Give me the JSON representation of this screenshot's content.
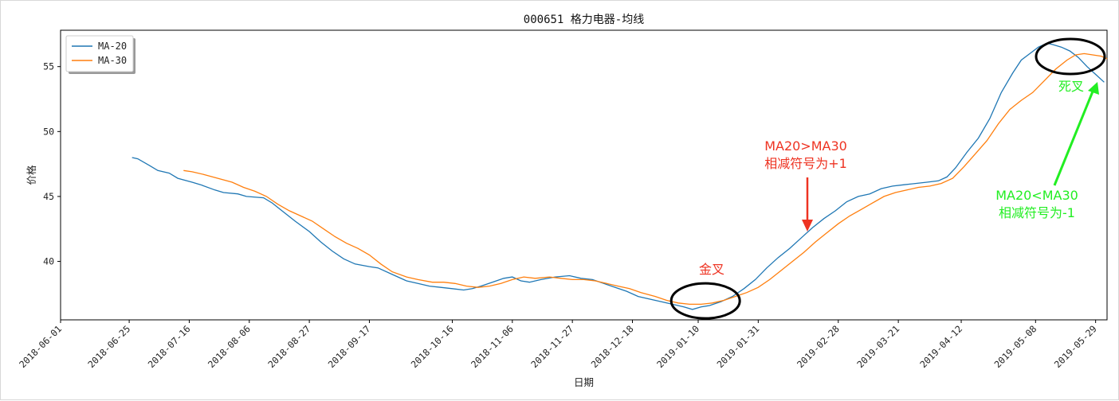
{
  "chart_data": {
    "type": "line",
    "title": "000651 格力电器-均线",
    "xlabel": "日期",
    "ylabel": "价格",
    "xlim": [
      "2018-06-01",
      "2019-06-02"
    ],
    "ylim": [
      35.5,
      57.8
    ],
    "x_tick_labels": [
      "2018-06-01",
      "2018-06-25",
      "2018-07-16",
      "2018-08-06",
      "2018-08-27",
      "2018-09-17",
      "2018-10-16",
      "2018-11-06",
      "2018-11-27",
      "2018-12-18",
      "2019-01-10",
      "2019-01-31",
      "2019-02-28",
      "2019-03-21",
      "2019-04-12",
      "2019-05-08",
      "2019-05-29"
    ],
    "y_ticks": [
      40,
      45,
      50,
      55
    ],
    "grid": false,
    "legend_position": "upper-left",
    "series": [
      {
        "name": "MA-20",
        "color": "#1f77b4",
        "points": [
          [
            "2018-06-26",
            48.0
          ],
          [
            "2018-06-28",
            47.9
          ],
          [
            "2018-07-02",
            47.4
          ],
          [
            "2018-07-05",
            47.0
          ],
          [
            "2018-07-09",
            46.8
          ],
          [
            "2018-07-12",
            46.4
          ],
          [
            "2018-07-17",
            46.1
          ],
          [
            "2018-07-20",
            45.9
          ],
          [
            "2018-07-25",
            45.5
          ],
          [
            "2018-07-28",
            45.3
          ],
          [
            "2018-08-02",
            45.2
          ],
          [
            "2018-08-05",
            45.0
          ],
          [
            "2018-08-11",
            44.9
          ],
          [
            "2018-08-14",
            44.5
          ],
          [
            "2018-08-18",
            43.8
          ],
          [
            "2018-08-22",
            43.1
          ],
          [
            "2018-08-27",
            42.3
          ],
          [
            "2018-08-31",
            41.5
          ],
          [
            "2018-09-04",
            40.8
          ],
          [
            "2018-09-08",
            40.2
          ],
          [
            "2018-09-12",
            39.8
          ],
          [
            "2018-09-17",
            39.6
          ],
          [
            "2018-09-20",
            39.5
          ],
          [
            "2018-09-25",
            39.0
          ],
          [
            "2018-09-30",
            38.5
          ],
          [
            "2018-10-04",
            38.3
          ],
          [
            "2018-10-08",
            38.1
          ],
          [
            "2018-10-12",
            38.0
          ],
          [
            "2018-10-16",
            37.9
          ],
          [
            "2018-10-20",
            37.8
          ],
          [
            "2018-10-23",
            37.9
          ],
          [
            "2018-10-26",
            38.1
          ],
          [
            "2018-10-30",
            38.4
          ],
          [
            "2018-11-03",
            38.7
          ],
          [
            "2018-11-06",
            38.8
          ],
          [
            "2018-11-09",
            38.5
          ],
          [
            "2018-11-12",
            38.4
          ],
          [
            "2018-11-16",
            38.6
          ],
          [
            "2018-11-21",
            38.8
          ],
          [
            "2018-11-26",
            38.9
          ],
          [
            "2018-11-30",
            38.7
          ],
          [
            "2018-12-04",
            38.6
          ],
          [
            "2018-12-08",
            38.3
          ],
          [
            "2018-12-12",
            38.0
          ],
          [
            "2018-12-16",
            37.7
          ],
          [
            "2018-12-20",
            37.3
          ],
          [
            "2018-12-24",
            37.1
          ],
          [
            "2018-12-28",
            36.9
          ],
          [
            "2019-01-01",
            36.7
          ],
          [
            "2019-01-05",
            36.5
          ],
          [
            "2019-01-08",
            36.3
          ],
          [
            "2019-01-11",
            36.5
          ],
          [
            "2019-01-14",
            36.6
          ],
          [
            "2019-01-18",
            36.9
          ],
          [
            "2019-01-22",
            37.3
          ],
          [
            "2019-01-26",
            37.9
          ],
          [
            "2019-01-30",
            38.6
          ],
          [
            "2019-02-03",
            39.5
          ],
          [
            "2019-02-07",
            40.3
          ],
          [
            "2019-02-11",
            41.0
          ],
          [
            "2019-02-15",
            41.8
          ],
          [
            "2019-02-19",
            42.6
          ],
          [
            "2019-02-23",
            43.3
          ],
          [
            "2019-02-27",
            43.9
          ],
          [
            "2019-03-03",
            44.6
          ],
          [
            "2019-03-07",
            45.0
          ],
          [
            "2019-03-11",
            45.2
          ],
          [
            "2019-03-15",
            45.6
          ],
          [
            "2019-03-19",
            45.8
          ],
          [
            "2019-03-23",
            45.9
          ],
          [
            "2019-03-27",
            46.0
          ],
          [
            "2019-03-31",
            46.1
          ],
          [
            "2019-04-04",
            46.2
          ],
          [
            "2019-04-07",
            46.5
          ],
          [
            "2019-04-10",
            47.2
          ],
          [
            "2019-04-14",
            48.4
          ],
          [
            "2019-04-18",
            49.5
          ],
          [
            "2019-04-22",
            51.0
          ],
          [
            "2019-04-26",
            53.0
          ],
          [
            "2019-04-30",
            54.5
          ],
          [
            "2019-05-03",
            55.5
          ],
          [
            "2019-05-06",
            56.0
          ],
          [
            "2019-05-09",
            56.5
          ],
          [
            "2019-05-12",
            56.8
          ],
          [
            "2019-05-14",
            56.7
          ],
          [
            "2019-05-17",
            56.5
          ],
          [
            "2019-05-20",
            56.2
          ],
          [
            "2019-05-23",
            55.7
          ],
          [
            "2019-05-26",
            55.0
          ],
          [
            "2019-05-29",
            54.4
          ],
          [
            "2019-06-01",
            53.8
          ]
        ]
      },
      {
        "name": "MA-30",
        "color": "#ff7f0e",
        "points": [
          [
            "2018-07-14",
            47.0
          ],
          [
            "2018-07-17",
            46.9
          ],
          [
            "2018-07-21",
            46.7
          ],
          [
            "2018-07-26",
            46.4
          ],
          [
            "2018-07-31",
            46.1
          ],
          [
            "2018-08-04",
            45.7
          ],
          [
            "2018-08-08",
            45.4
          ],
          [
            "2018-08-12",
            45.0
          ],
          [
            "2018-08-16",
            44.4
          ],
          [
            "2018-08-20",
            43.9
          ],
          [
            "2018-08-24",
            43.5
          ],
          [
            "2018-08-28",
            43.1
          ],
          [
            "2018-09-01",
            42.5
          ],
          [
            "2018-09-05",
            41.9
          ],
          [
            "2018-09-09",
            41.4
          ],
          [
            "2018-09-13",
            41.0
          ],
          [
            "2018-09-17",
            40.5
          ],
          [
            "2018-09-21",
            39.8
          ],
          [
            "2018-09-25",
            39.2
          ],
          [
            "2018-09-30",
            38.8
          ],
          [
            "2018-10-04",
            38.6
          ],
          [
            "2018-10-09",
            38.4
          ],
          [
            "2018-10-13",
            38.4
          ],
          [
            "2018-10-17",
            38.3
          ],
          [
            "2018-10-21",
            38.1
          ],
          [
            "2018-10-25",
            38.0
          ],
          [
            "2018-10-29",
            38.1
          ],
          [
            "2018-11-02",
            38.3
          ],
          [
            "2018-11-06",
            38.6
          ],
          [
            "2018-11-10",
            38.8
          ],
          [
            "2018-11-14",
            38.7
          ],
          [
            "2018-11-19",
            38.8
          ],
          [
            "2018-11-23",
            38.7
          ],
          [
            "2018-11-27",
            38.6
          ],
          [
            "2018-12-01",
            38.6
          ],
          [
            "2018-12-05",
            38.5
          ],
          [
            "2018-12-09",
            38.3
          ],
          [
            "2018-12-13",
            38.1
          ],
          [
            "2018-12-17",
            37.9
          ],
          [
            "2018-12-21",
            37.6
          ],
          [
            "2018-12-26",
            37.3
          ],
          [
            "2018-12-30",
            37.0
          ],
          [
            "2019-01-03",
            36.8
          ],
          [
            "2019-01-07",
            36.7
          ],
          [
            "2019-01-11",
            36.7
          ],
          [
            "2019-01-15",
            36.8
          ],
          [
            "2019-01-19",
            37.0
          ],
          [
            "2019-01-23",
            37.3
          ],
          [
            "2019-01-27",
            37.6
          ],
          [
            "2019-01-31",
            38.0
          ],
          [
            "2019-02-04",
            38.6
          ],
          [
            "2019-02-08",
            39.3
          ],
          [
            "2019-02-12",
            40.0
          ],
          [
            "2019-02-16",
            40.7
          ],
          [
            "2019-02-20",
            41.5
          ],
          [
            "2019-02-24",
            42.2
          ],
          [
            "2019-02-28",
            42.9
          ],
          [
            "2019-03-04",
            43.5
          ],
          [
            "2019-03-08",
            44.0
          ],
          [
            "2019-03-12",
            44.5
          ],
          [
            "2019-03-16",
            45.0
          ],
          [
            "2019-03-20",
            45.3
          ],
          [
            "2019-03-24",
            45.5
          ],
          [
            "2019-03-28",
            45.7
          ],
          [
            "2019-04-01",
            45.8
          ],
          [
            "2019-04-05",
            46.0
          ],
          [
            "2019-04-09",
            46.4
          ],
          [
            "2019-04-13",
            47.3
          ],
          [
            "2019-04-17",
            48.3
          ],
          [
            "2019-04-21",
            49.3
          ],
          [
            "2019-04-25",
            50.6
          ],
          [
            "2019-04-29",
            51.7
          ],
          [
            "2019-05-03",
            52.4
          ],
          [
            "2019-05-07",
            53.0
          ],
          [
            "2019-05-11",
            53.9
          ],
          [
            "2019-05-15",
            54.8
          ],
          [
            "2019-05-19",
            55.5
          ],
          [
            "2019-05-22",
            55.9
          ],
          [
            "2019-05-25",
            56.0
          ],
          [
            "2019-05-28",
            55.9
          ],
          [
            "2019-05-31",
            55.8
          ],
          [
            "2019-06-02",
            55.6
          ]
        ]
      }
    ],
    "annotations": [
      {
        "text": "金叉",
        "color": "#ee3322",
        "at": [
          "2019-01-12",
          36.9
        ]
      },
      {
        "text_lines": [
          "MA20>MA30",
          "相减符号为+1"
        ],
        "color": "#ee3322",
        "arrow_to": [
          "2019-02-20",
          42.0
        ]
      },
      {
        "text_lines": [
          "MA20<MA30",
          "相减符号为-1"
        ],
        "color": "#22ee22",
        "arrow_to": [
          "2019-06-01",
          53.8
        ]
      },
      {
        "text": "死叉",
        "color": "#22ee22",
        "at": [
          "2019-05-22",
          56.0
        ]
      }
    ]
  }
}
